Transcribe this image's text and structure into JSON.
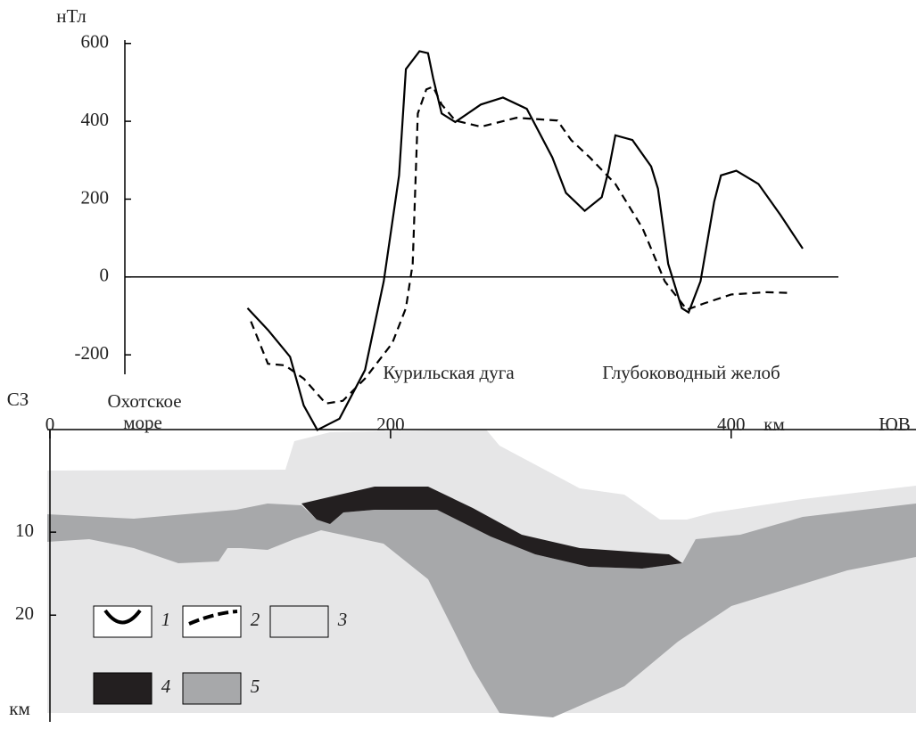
{
  "chart_data": [
    {
      "type": "line",
      "y_label": "нТл",
      "xlim": [
        0,
        508
      ],
      "ylim": [
        -250,
        620
      ],
      "yticks": [
        -200,
        0,
        200,
        400,
        600
      ],
      "series": [
        {
          "name": "1",
          "color": "#000000",
          "style": "solid",
          "x": [
            116,
            128,
            141,
            149,
            157,
            170,
            185,
            196,
            205,
            209,
            217,
            222,
            225,
            230,
            238,
            253,
            266,
            280,
            295,
            303,
            314,
            324,
            328,
            332,
            342,
            353,
            357,
            363,
            371,
            375,
            382,
            390,
            394,
            403,
            416,
            429,
            442
          ],
          "values": [
            -80,
            -136,
            -205,
            -330,
            -393,
            -364,
            -239,
            -11,
            261,
            534,
            580,
            575,
            511,
            420,
            398,
            443,
            461,
            432,
            307,
            216,
            170,
            205,
            273,
            364,
            352,
            284,
            227,
            34,
            -80,
            -91,
            -11,
            193,
            261,
            273,
            239,
            159,
            73
          ]
        },
        {
          "name": "2",
          "color": "#000000",
          "style": "dashed",
          "x": [
            118,
            128,
            138,
            149,
            162,
            172,
            185,
            201,
            209,
            213,
            216,
            221,
            225,
            230,
            238,
            253,
            274,
            298,
            306,
            317,
            332,
            348,
            361,
            374,
            384,
            400,
            421,
            434
          ],
          "values": [
            -114,
            -223,
            -227,
            -261,
            -325,
            -318,
            -261,
            -170,
            -80,
            34,
            420,
            482,
            489,
            443,
            402,
            386,
            409,
            402,
            352,
            307,
            239,
            125,
            -11,
            -84,
            -68,
            -45,
            -39,
            -41
          ]
        }
      ],
      "annotations": [
        "Курильская дуга",
        "Глубоководный желоб"
      ]
    },
    {
      "type": "section",
      "left_label": "СЗ",
      "right_label": "ЮВ",
      "x_label": "км",
      "y_label": "км",
      "xlim": [
        0,
        508
      ],
      "xticks": [
        0,
        200,
        400
      ],
      "ylim": [
        0,
        32
      ],
      "yticks": [
        10,
        20
      ],
      "annotation": [
        "Охотское",
        "море"
      ],
      "layers": [
        {
          "name": "3",
          "color": "#e6e6e7"
        },
        {
          "name": "4",
          "color": "#231f20"
        },
        {
          "name": "5",
          "color": "#a7a8aa"
        }
      ]
    }
  ]
}
